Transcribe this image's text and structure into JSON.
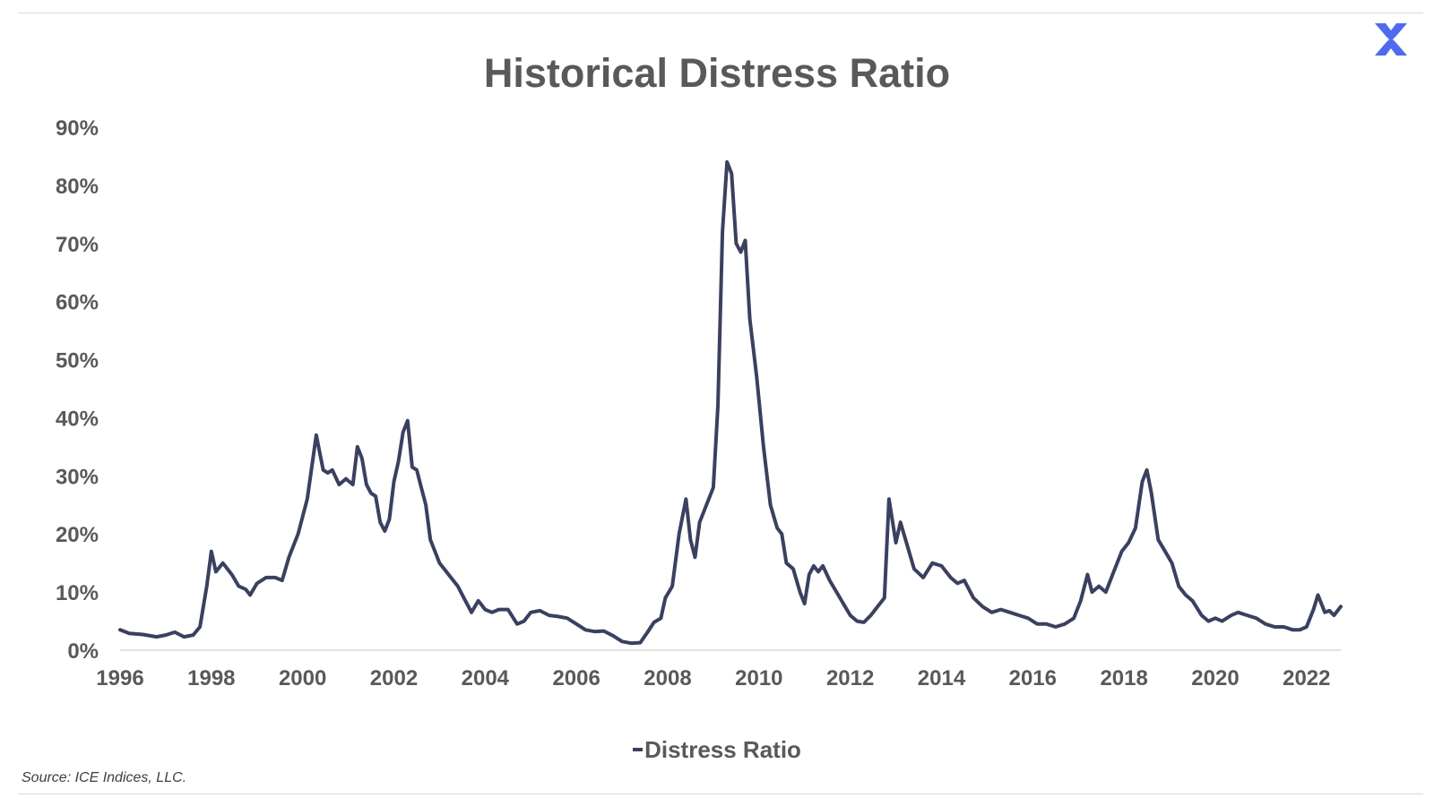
{
  "brand": {
    "logo_icon": "x-logo-icon",
    "logo_color": "#4f6bed"
  },
  "chart_data": {
    "type": "line",
    "title": "Historical Distress Ratio",
    "xlabel": "",
    "ylabel": "",
    "xlim": [
      1996,
      2022.75
    ],
    "ylim": [
      0,
      90
    ],
    "x_ticks": [
      "1996",
      "1998",
      "2000",
      "2002",
      "2004",
      "2006",
      "2008",
      "2010",
      "2012",
      "2014",
      "2016",
      "2018",
      "2020",
      "2022"
    ],
    "y_ticks": [
      "0%",
      "10%",
      "20%",
      "30%",
      "40%",
      "50%",
      "60%",
      "70%",
      "80%",
      "90%"
    ],
    "grid": false,
    "legend_position": "bottom",
    "line_color": "#3a4060",
    "series": [
      {
        "name": "Distress Ratio",
        "points": [
          [
            1996.0,
            3.5
          ],
          [
            1996.2,
            2.9
          ],
          [
            1996.5,
            2.7
          ],
          [
            1996.8,
            2.3
          ],
          [
            1997.0,
            2.6
          ],
          [
            1997.2,
            3.1
          ],
          [
            1997.4,
            2.3
          ],
          [
            1997.6,
            2.6
          ],
          [
            1997.75,
            4.0
          ],
          [
            1997.9,
            11.0
          ],
          [
            1998.0,
            17.0
          ],
          [
            1998.1,
            13.5
          ],
          [
            1998.25,
            15.0
          ],
          [
            1998.45,
            13.0
          ],
          [
            1998.6,
            11.0
          ],
          [
            1998.75,
            10.5
          ],
          [
            1998.85,
            9.5
          ],
          [
            1999.0,
            11.5
          ],
          [
            1999.2,
            12.5
          ],
          [
            1999.4,
            12.5
          ],
          [
            1999.55,
            12.0
          ],
          [
            1999.7,
            16.0
          ],
          [
            1999.9,
            20.0
          ],
          [
            2000.1,
            26.0
          ],
          [
            2000.3,
            37.0
          ],
          [
            2000.45,
            31.0
          ],
          [
            2000.55,
            30.5
          ],
          [
            2000.65,
            31.0
          ],
          [
            2000.8,
            28.5
          ],
          [
            2000.95,
            29.5
          ],
          [
            2001.1,
            28.5
          ],
          [
            2001.2,
            35.0
          ],
          [
            2001.3,
            33.0
          ],
          [
            2001.4,
            28.5
          ],
          [
            2001.5,
            27.0
          ],
          [
            2001.6,
            26.5
          ],
          [
            2001.7,
            22.0
          ],
          [
            2001.8,
            20.5
          ],
          [
            2001.9,
            22.5
          ],
          [
            2002.0,
            29.0
          ],
          [
            2002.1,
            32.5
          ],
          [
            2002.2,
            37.5
          ],
          [
            2002.3,
            39.5
          ],
          [
            2002.4,
            31.5
          ],
          [
            2002.5,
            31.0
          ],
          [
            2002.6,
            28.0
          ],
          [
            2002.7,
            25.0
          ],
          [
            2002.8,
            19.0
          ],
          [
            2003.0,
            15.0
          ],
          [
            2003.2,
            13.0
          ],
          [
            2003.4,
            11.0
          ],
          [
            2003.5,
            9.5
          ],
          [
            2003.7,
            6.5
          ],
          [
            2003.85,
            8.5
          ],
          [
            2004.0,
            7.0
          ],
          [
            2004.15,
            6.5
          ],
          [
            2004.3,
            7.0
          ],
          [
            2004.5,
            7.0
          ],
          [
            2004.7,
            4.5
          ],
          [
            2004.85,
            5.0
          ],
          [
            2005.0,
            6.5
          ],
          [
            2005.2,
            6.8
          ],
          [
            2005.4,
            6.0
          ],
          [
            2005.6,
            5.8
          ],
          [
            2005.8,
            5.5
          ],
          [
            2006.0,
            4.5
          ],
          [
            2006.2,
            3.5
          ],
          [
            2006.4,
            3.2
          ],
          [
            2006.6,
            3.3
          ],
          [
            2006.8,
            2.5
          ],
          [
            2007.0,
            1.5
          ],
          [
            2007.2,
            1.2
          ],
          [
            2007.4,
            1.3
          ],
          [
            2007.55,
            3.0
          ],
          [
            2007.7,
            4.8
          ],
          [
            2007.85,
            5.5
          ],
          [
            2007.95,
            9.0
          ],
          [
            2008.1,
            11.0
          ],
          [
            2008.25,
            20.0
          ],
          [
            2008.4,
            26.0
          ],
          [
            2008.5,
            19.0
          ],
          [
            2008.6,
            16.0
          ],
          [
            2008.7,
            22.0
          ],
          [
            2008.9,
            26.0
          ],
          [
            2009.0,
            28.0
          ],
          [
            2009.1,
            42.0
          ],
          [
            2009.2,
            72.0
          ],
          [
            2009.3,
            84.0
          ],
          [
            2009.4,
            82.0
          ],
          [
            2009.5,
            70.0
          ],
          [
            2009.6,
            68.5
          ],
          [
            2009.7,
            70.5
          ],
          [
            2009.8,
            57.0
          ],
          [
            2009.95,
            47.0
          ],
          [
            2010.1,
            35.0
          ],
          [
            2010.25,
            25.0
          ],
          [
            2010.4,
            21.0
          ],
          [
            2010.5,
            20.0
          ],
          [
            2010.6,
            15.0
          ],
          [
            2010.75,
            14.0
          ],
          [
            2010.9,
            10.0
          ],
          [
            2011.0,
            8.0
          ],
          [
            2011.1,
            13.0
          ],
          [
            2011.2,
            14.5
          ],
          [
            2011.3,
            13.5
          ],
          [
            2011.4,
            14.5
          ],
          [
            2011.55,
            12.0
          ],
          [
            2011.7,
            10.0
          ],
          [
            2011.85,
            8.0
          ],
          [
            2012.0,
            6.0
          ],
          [
            2012.15,
            5.0
          ],
          [
            2012.3,
            4.8
          ],
          [
            2012.45,
            6.0
          ],
          [
            2012.6,
            7.5
          ],
          [
            2012.75,
            9.0
          ],
          [
            2012.85,
            26.0
          ],
          [
            2013.0,
            18.5
          ],
          [
            2013.1,
            22.0
          ],
          [
            2013.25,
            18.0
          ],
          [
            2013.4,
            14.0
          ],
          [
            2013.6,
            12.5
          ],
          [
            2013.8,
            15.0
          ],
          [
            2014.0,
            14.5
          ],
          [
            2014.2,
            12.5
          ],
          [
            2014.35,
            11.5
          ],
          [
            2014.5,
            12.0
          ],
          [
            2014.7,
            9.0
          ],
          [
            2014.9,
            7.5
          ],
          [
            2015.1,
            6.5
          ],
          [
            2015.3,
            7.0
          ],
          [
            2015.5,
            6.5
          ],
          [
            2015.7,
            6.0
          ],
          [
            2015.9,
            5.5
          ],
          [
            2016.1,
            4.5
          ],
          [
            2016.3,
            4.5
          ],
          [
            2016.5,
            4.0
          ],
          [
            2016.7,
            4.5
          ],
          [
            2016.9,
            5.5
          ],
          [
            2017.05,
            8.5
          ],
          [
            2017.2,
            13.0
          ],
          [
            2017.3,
            10.0
          ],
          [
            2017.45,
            11.0
          ],
          [
            2017.6,
            10.0
          ],
          [
            2017.75,
            13.0
          ],
          [
            2017.95,
            17.0
          ],
          [
            2018.1,
            18.5
          ],
          [
            2018.25,
            21.0
          ],
          [
            2018.4,
            29.0
          ],
          [
            2018.5,
            31.0
          ],
          [
            2018.6,
            27.0
          ],
          [
            2018.75,
            19.0
          ],
          [
            2018.9,
            17.0
          ],
          [
            2019.05,
            15.0
          ],
          [
            2019.2,
            11.0
          ],
          [
            2019.35,
            9.5
          ],
          [
            2019.5,
            8.5
          ],
          [
            2019.7,
            6.0
          ],
          [
            2019.85,
            5.0
          ],
          [
            2020.0,
            5.5
          ],
          [
            2020.15,
            5.0
          ],
          [
            2020.35,
            6.0
          ],
          [
            2020.5,
            6.5
          ],
          [
            2020.7,
            6.0
          ],
          [
            2020.9,
            5.5
          ],
          [
            2021.1,
            4.5
          ],
          [
            2021.3,
            4.0
          ],
          [
            2021.5,
            4.0
          ],
          [
            2021.7,
            3.5
          ],
          [
            2021.85,
            3.5
          ],
          [
            2022.0,
            4.0
          ],
          [
            2022.15,
            7.0
          ],
          [
            2022.25,
            9.5
          ],
          [
            2022.4,
            6.5
          ],
          [
            2022.5,
            6.8
          ],
          [
            2022.6,
            6.0
          ],
          [
            2022.75,
            7.5
          ]
        ]
      }
    ]
  },
  "source_note": "Source: ICE Indices, LLC."
}
